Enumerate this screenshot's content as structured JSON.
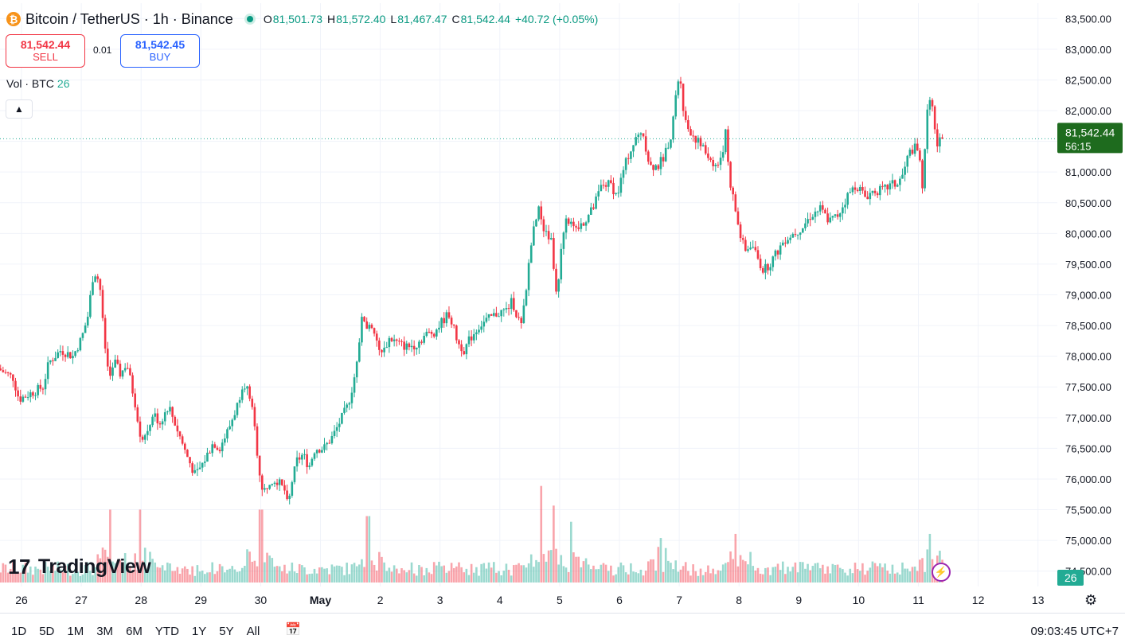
{
  "header": {
    "symbol": "Bitcoin / TetherUS · 1h · Binance",
    "coin_icon": "bitcoin-icon",
    "ohlc": {
      "o_label": "O",
      "o": "81,501.73",
      "h_label": "H",
      "h": "81,572.40",
      "l_label": "L",
      "l": "81,467.47",
      "c_label": "C",
      "c": "81,542.44",
      "change": "+40.72 (+0.05%)"
    }
  },
  "trade": {
    "sell_price": "81,542.44",
    "sell_label": "SELL",
    "buy_price": "81,542.45",
    "buy_label": "BUY",
    "spread": "0.01"
  },
  "volume": {
    "label": "Vol · BTC",
    "value": "26"
  },
  "branding": {
    "logo_mark": "17",
    "name": "TradingView"
  },
  "bottom": {
    "ranges": [
      "1D",
      "5D",
      "1M",
      "3M",
      "6M",
      "YTD",
      "1Y",
      "5Y",
      "All"
    ],
    "time": "09:03:45 UTC+7"
  },
  "colors": {
    "up": "#22ab94",
    "down": "#f23645",
    "price_tag": "#1e6b1e",
    "grid": "#f0f3fa"
  },
  "chart_data": {
    "type": "candlestick",
    "y_axis_ticks": [
      "83,500.00",
      "83,000.00",
      "82,500.00",
      "82,000.00",
      "81,500.00",
      "81,000.00",
      "80,500.00",
      "80,000.00",
      "79,500.00",
      "79,000.00",
      "78,500.00",
      "78,000.00",
      "77,500.00",
      "77,000.00",
      "76,500.00",
      "76,000.00",
      "75,500.00",
      "75,000.00",
      "74,500.00"
    ],
    "ylim": [
      74250,
      83750
    ],
    "x_ticks": [
      "26",
      "27",
      "28",
      "29",
      "30",
      "May",
      "2",
      "3",
      "4",
      "5",
      "6",
      "7",
      "8",
      "9",
      "10",
      "11",
      "12",
      "13"
    ],
    "x_tick_days": [
      0,
      1,
      2,
      3,
      4,
      5,
      6,
      7,
      8,
      9,
      10,
      11,
      12,
      13,
      14,
      15,
      16,
      17
    ],
    "last_price": "81,542.44",
    "countdown": "56:15",
    "volume_last": "26",
    "price_path": [
      [
        -0.35,
        77800
      ],
      [
        -0.1,
        77650
      ],
      [
        0.0,
        77300
      ],
      [
        0.2,
        77400
      ],
      [
        0.4,
        77500
      ],
      [
        0.5,
        77900
      ],
      [
        0.7,
        78100
      ],
      [
        0.9,
        78000
      ],
      [
        1.05,
        78300
      ],
      [
        1.15,
        78650
      ],
      [
        1.25,
        79400
      ],
      [
        1.35,
        79200
      ],
      [
        1.42,
        78300
      ],
      [
        1.5,
        77700
      ],
      [
        1.6,
        77900
      ],
      [
        1.7,
        77700
      ],
      [
        1.8,
        77900
      ],
      [
        1.95,
        77200
      ],
      [
        2.05,
        76600
      ],
      [
        2.15,
        76800
      ],
      [
        2.25,
        77100
      ],
      [
        2.35,
        76900
      ],
      [
        2.5,
        77200
      ],
      [
        2.65,
        76800
      ],
      [
        2.8,
        76400
      ],
      [
        2.95,
        76050
      ],
      [
        3.1,
        76300
      ],
      [
        3.25,
        76600
      ],
      [
        3.35,
        76500
      ],
      [
        3.5,
        76800
      ],
      [
        3.65,
        77200
      ],
      [
        3.75,
        77600
      ],
      [
        3.85,
        77400
      ],
      [
        3.92,
        77000
      ],
      [
        4.0,
        76300
      ],
      [
        4.05,
        75900
      ],
      [
        4.1,
        75800
      ],
      [
        4.2,
        76000
      ],
      [
        4.3,
        76000
      ],
      [
        4.45,
        75800
      ],
      [
        4.5,
        75500
      ],
      [
        4.55,
        75900
      ],
      [
        4.65,
        76300
      ],
      [
        4.75,
        76400
      ],
      [
        4.85,
        76200
      ],
      [
        4.95,
        76500
      ],
      [
        5.1,
        76500
      ],
      [
        5.25,
        76700
      ],
      [
        5.4,
        77000
      ],
      [
        5.5,
        77200
      ],
      [
        5.6,
        77600
      ],
      [
        5.75,
        78700
      ],
      [
        5.8,
        78500
      ],
      [
        5.9,
        78400
      ],
      [
        6.0,
        78200
      ],
      [
        6.05,
        78000
      ],
      [
        6.2,
        78300
      ],
      [
        6.35,
        78200
      ],
      [
        6.5,
        78150
      ],
      [
        6.65,
        78200
      ],
      [
        6.8,
        78350
      ],
      [
        6.95,
        78400
      ],
      [
        7.1,
        78600
      ],
      [
        7.2,
        78700
      ],
      [
        7.25,
        78500
      ],
      [
        7.35,
        78200
      ],
      [
        7.45,
        78100
      ],
      [
        7.55,
        78300
      ],
      [
        7.7,
        78500
      ],
      [
        7.85,
        78600
      ],
      [
        8.0,
        78700
      ],
      [
        8.15,
        78750
      ],
      [
        8.25,
        78900
      ],
      [
        8.35,
        78600
      ],
      [
        8.4,
        78500
      ],
      [
        8.48,
        79000
      ],
      [
        8.55,
        79800
      ],
      [
        8.62,
        80100
      ],
      [
        8.7,
        80400
      ],
      [
        8.8,
        80000
      ],
      [
        8.9,
        79900
      ],
      [
        9.0,
        78800
      ],
      [
        9.05,
        79700
      ],
      [
        9.15,
        80300
      ],
      [
        9.3,
        80000
      ],
      [
        9.45,
        80200
      ],
      [
        9.6,
        80400
      ],
      [
        9.75,
        80800
      ],
      [
        9.9,
        80800
      ],
      [
        10.0,
        80600
      ],
      [
        10.1,
        81000
      ],
      [
        10.2,
        81300
      ],
      [
        10.3,
        81500
      ],
      [
        10.42,
        81700
      ],
      [
        10.55,
        81100
      ],
      [
        10.7,
        81100
      ],
      [
        10.8,
        81300
      ],
      [
        10.9,
        81600
      ],
      [
        11.0,
        82300
      ],
      [
        11.05,
        82700
      ],
      [
        11.12,
        81900
      ],
      [
        11.2,
        81700
      ],
      [
        11.35,
        81500
      ],
      [
        11.5,
        81300
      ],
      [
        11.65,
        81100
      ],
      [
        11.75,
        81200
      ],
      [
        11.82,
        81700
      ],
      [
        11.88,
        80900
      ],
      [
        11.98,
        80400
      ],
      [
        12.05,
        80000
      ],
      [
        12.15,
        79700
      ],
      [
        12.25,
        79850
      ],
      [
        12.35,
        79600
      ],
      [
        12.45,
        79400
      ],
      [
        12.55,
        79500
      ],
      [
        12.68,
        79700
      ],
      [
        12.8,
        79900
      ],
      [
        12.95,
        80000
      ],
      [
        13.1,
        80100
      ],
      [
        13.25,
        80300
      ],
      [
        13.4,
        80400
      ],
      [
        13.55,
        80200
      ],
      [
        13.7,
        80300
      ],
      [
        13.85,
        80600
      ],
      [
        14.0,
        80800
      ],
      [
        14.15,
        80600
      ],
      [
        14.3,
        80700
      ],
      [
        14.45,
        80700
      ],
      [
        14.6,
        80800
      ],
      [
        14.7,
        80800
      ],
      [
        14.8,
        81000
      ],
      [
        14.88,
        81300
      ],
      [
        14.97,
        81400
      ],
      [
        15.05,
        81300
      ],
      [
        15.12,
        80700
      ],
      [
        15.18,
        82000
      ],
      [
        15.25,
        82300
      ],
      [
        15.3,
        81800
      ],
      [
        15.35,
        81400
      ],
      [
        15.42,
        81542
      ]
    ],
    "volume_spikes": [
      [
        1.5,
        0.9
      ],
      [
        2.0,
        0.9
      ],
      [
        4.0,
        0.9
      ],
      [
        5.8,
        0.82
      ],
      [
        8.7,
        1.0
      ],
      [
        8.9,
        0.95
      ],
      [
        9.2,
        0.75
      ],
      [
        10.7,
        0.55
      ],
      [
        11.95,
        0.6
      ],
      [
        15.2,
        0.6
      ]
    ]
  }
}
